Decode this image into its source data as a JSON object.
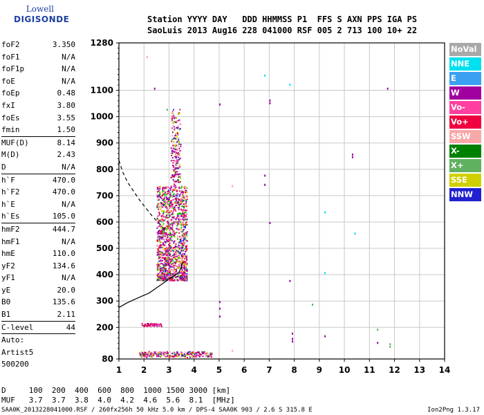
{
  "logo": {
    "line1": "Lowell",
    "line2": "DIGISONDE"
  },
  "header": {
    "labels": "Station YYYY DAY   DDD HHMMSS P1  FFS S AXN PPS IGA PS",
    "values": "SaoLuis 2013 Aug16 228 041000 RSF 005 2 713 100 10+ 22"
  },
  "params": [
    {
      "k": "foF2",
      "v": "3.350"
    },
    {
      "k": "foF1",
      "v": "N/A"
    },
    {
      "k": "foF1p",
      "v": "N/A"
    },
    {
      "k": "foE",
      "v": "N/A"
    },
    {
      "k": "foEp",
      "v": "0.48"
    },
    {
      "k": "fxI",
      "v": "3.80"
    },
    {
      "k": "foEs",
      "v": "3.55"
    },
    {
      "k": "fmin",
      "v": "1.50"
    },
    {
      "sep": true
    },
    {
      "k": "MUF(D)",
      "v": "8.14"
    },
    {
      "k": "M(D)",
      "v": "2.43"
    },
    {
      "k": "D",
      "v": "N/A"
    },
    {
      "sep": true
    },
    {
      "k": "h`F",
      "v": "470.0"
    },
    {
      "k": "h`F2",
      "v": "470.0"
    },
    {
      "k": "h`E",
      "v": "N/A"
    },
    {
      "k": "h`Es",
      "v": "105.0"
    },
    {
      "sep": true
    },
    {
      "k": "hmF2",
      "v": "444.7"
    },
    {
      "k": "hmF1",
      "v": "N/A"
    },
    {
      "k": "hmE",
      "v": "110.0"
    },
    {
      "k": "yF2",
      "v": "134.6"
    },
    {
      "k": "yF1",
      "v": "N/A"
    },
    {
      "k": "yE",
      "v": "20.0"
    },
    {
      "k": "B0",
      "v": "135.6"
    },
    {
      "k": "B1",
      "v": "2.11"
    },
    {
      "sep": true
    },
    {
      "k": "C-level",
      "v": "44"
    },
    {
      "sep": true
    },
    {
      "plain": "Auto:"
    },
    {
      "plain": "Artist5"
    },
    {
      "plain": "500200"
    }
  ],
  "legend": [
    {
      "label": "NoVal",
      "color": "#a8a8a8"
    },
    {
      "label": "NNE",
      "color": "#00e0f0"
    },
    {
      "label": "E",
      "color": "#3aa0f0"
    },
    {
      "label": "W",
      "color": "#a000a0"
    },
    {
      "label": "Vo-",
      "color": "#ff40a0"
    },
    {
      "label": "Vo+",
      "color": "#f00040"
    },
    {
      "label": "SSW",
      "color": "#f8a8a8"
    },
    {
      "label": "X-",
      "color": "#008000"
    },
    {
      "label": "X+",
      "color": "#60b060"
    },
    {
      "label": "SSE",
      "color": "#d0d000"
    },
    {
      "label": "NNW",
      "color": "#2020d0"
    }
  ],
  "footer": {
    "d_line": "D     100  200  400  600  800  1000 1500 3000 [km]",
    "muf_line": "MUF   3.7  3.7  3.8  4.0  4.2  4.6  5.6  8.1  [MHz]",
    "filename": "SAA0K_2013228041000.RSF / 260fx256h 50 kHz 5.0 km / DPS-4 SAA0K 903 / 2.6 S 315.8 E",
    "version": "Ion2Png 1.3.17"
  },
  "chart_data": {
    "type": "scatter",
    "xlim": [
      1,
      14
    ],
    "ylim": [
      80,
      1280
    ],
    "xticks": [
      1,
      2,
      3,
      4,
      5,
      6,
      7,
      8,
      9,
      10,
      11,
      12,
      13,
      14
    ],
    "yticks": [
      80,
      200,
      300,
      400,
      500,
      600,
      700,
      800,
      900,
      1000,
      1100,
      1280
    ],
    "grid": true,
    "series": [
      {
        "name": "W",
        "color": "#a000a0",
        "points": [
          [
            2.4,
            1110
          ],
          [
            5.0,
            1050
          ],
          [
            7.0,
            1065
          ],
          [
            7.0,
            1055
          ],
          [
            10.3,
            860
          ],
          [
            10.3,
            850
          ],
          [
            11.7,
            1110
          ],
          [
            6.8,
            780
          ],
          [
            6.8,
            745
          ],
          [
            7.0,
            600
          ],
          [
            7.8,
            380
          ],
          [
            7.9,
            180
          ],
          [
            7.9,
            160
          ],
          [
            7.9,
            150
          ],
          [
            9.2,
            170
          ],
          [
            11.3,
            145
          ],
          [
            5.0,
            300
          ],
          [
            5.0,
            275
          ],
          [
            5.0,
            245
          ]
        ]
      },
      {
        "name": "NNE",
        "color": "#00e0f0",
        "points": [
          [
            6.8,
            1160
          ],
          [
            7.8,
            1125
          ],
          [
            9.2,
            640
          ],
          [
            9.2,
            410
          ],
          [
            10.4,
            560
          ]
        ]
      },
      {
        "name": "X+",
        "color": "#60b060",
        "points": [
          [
            8.7,
            290
          ],
          [
            11.3,
            195
          ],
          [
            11.8,
            140
          ],
          [
            11.8,
            130
          ],
          [
            2.9,
            1030
          ]
        ]
      },
      {
        "name": "SSW",
        "color": "#f8a8a8",
        "points": [
          [
            2.1,
            1230
          ],
          [
            5.5,
            740
          ],
          [
            5.5,
            115
          ]
        ]
      }
    ],
    "traces": [
      {
        "name": "virtual height",
        "style": "solid",
        "points": [
          [
            1.0,
            275
          ],
          [
            1.3,
            292
          ],
          [
            1.6,
            305
          ],
          [
            1.9,
            318
          ],
          [
            2.2,
            330
          ],
          [
            2.5,
            350
          ],
          [
            2.8,
            370
          ],
          [
            3.0,
            385
          ],
          [
            3.2,
            395
          ],
          [
            3.4,
            410
          ],
          [
            3.5,
            430
          ],
          [
            3.55,
            450
          ]
        ]
      },
      {
        "name": "dashed",
        "style": "dashed",
        "points": [
          [
            1.0,
            835
          ],
          [
            1.15,
            790
          ],
          [
            1.35,
            750
          ],
          [
            1.6,
            715
          ],
          [
            1.85,
            680
          ],
          [
            2.1,
            650
          ],
          [
            2.35,
            620
          ],
          [
            2.6,
            595
          ],
          [
            2.85,
            570
          ]
        ]
      }
    ]
  }
}
